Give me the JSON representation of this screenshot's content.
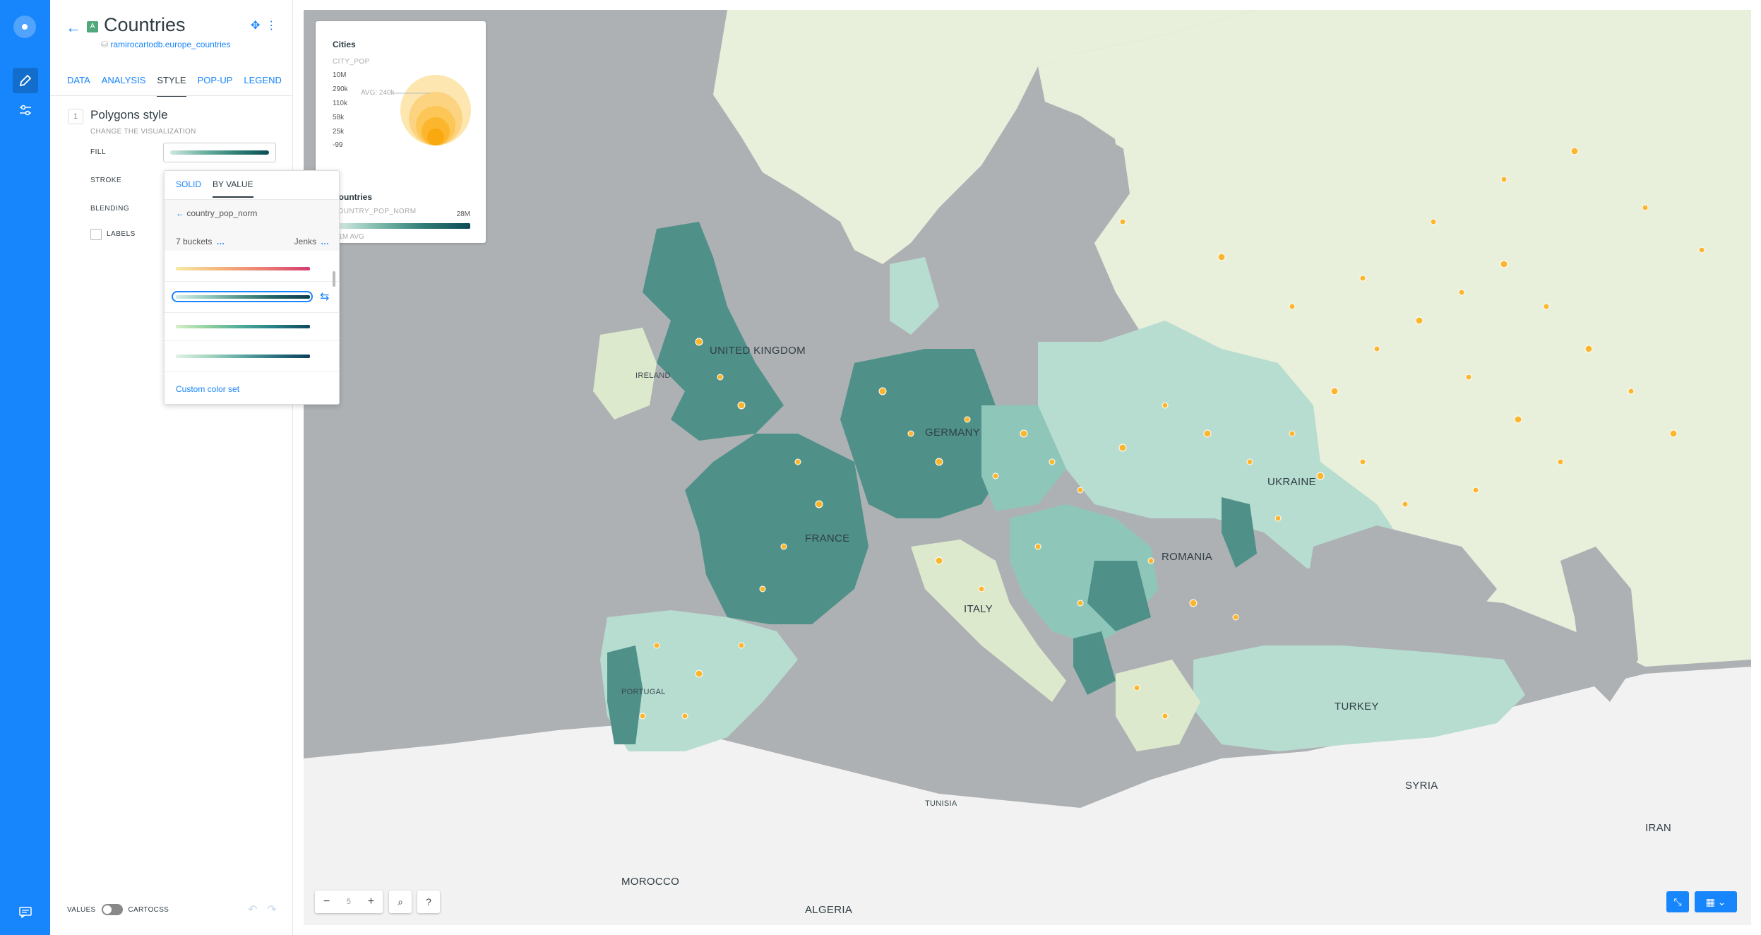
{
  "rail": {
    "icons": [
      "carto-logo-icon",
      "pencil-icon",
      "sliders-icon",
      "chat-icon"
    ]
  },
  "layer": {
    "badge": "A",
    "title": "Countries",
    "source": "ramirocartodb.europe_countries"
  },
  "tabs": [
    {
      "label": "DATA"
    },
    {
      "label": "ANALYSIS"
    },
    {
      "label": "STYLE"
    },
    {
      "label": "POP-UP"
    },
    {
      "label": "LEGEND"
    }
  ],
  "style": {
    "step": "1",
    "title": "Polygons style",
    "subtitle": "CHANGE THE VISUALIZATION",
    "fill_label": "FILL",
    "stroke_label": "STROKE",
    "blending_label": "BLENDING",
    "labels_label": "LABELS"
  },
  "dropdown": {
    "tab_solid": "SOLID",
    "tab_by_value": "BY VALUE",
    "attribute": "country_pop_norm",
    "buckets": "7 buckets",
    "method": "Jenks",
    "custom": "Custom color set"
  },
  "footer": {
    "values": "VALUES",
    "cartocss": "CARTOCSS"
  },
  "legend": {
    "cities_title": "Cities",
    "cities_sub": "CITY_POP",
    "cities_values": [
      "10M",
      "290k",
      "110k",
      "58k",
      "25k",
      "-99"
    ],
    "cities_avg": "AVG: 240k",
    "countries_title": "Countries",
    "countries_sub": "COUNTRY_POP_NORM",
    "countries_max": "28M",
    "countries_avg": "1.1M AVG"
  },
  "map": {
    "zoom_level": "5",
    "country_labels": [
      "UNITED KINGDOM",
      "IRELAND",
      "FRANCE",
      "GERMANY",
      "ITALY",
      "UKRAINE",
      "ROMANIA",
      "TURKEY",
      "PORTUGAL",
      "SYRIA",
      "IRAN",
      "MOROCCO",
      "ALGERIA",
      "TUNISIA"
    ],
    "colors": {
      "dark": "#4f9189",
      "mid": "#8ec7b9",
      "light": "#cce6dc",
      "land": "#e8f0db",
      "south": "#f2f2f2",
      "sea": "#aeb1b4",
      "point": "#fcb62e"
    }
  }
}
